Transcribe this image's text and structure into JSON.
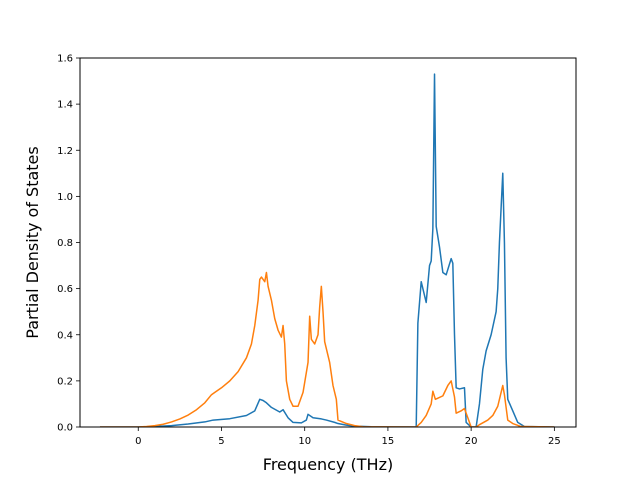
{
  "chart_data": {
    "type": "line",
    "title": "",
    "xlabel": "Frequency (THz)",
    "ylabel": "Partial Density of States",
    "xlim": [
      -3.5,
      26.3
    ],
    "ylim": [
      0,
      1.6
    ],
    "xticks": [
      0,
      5,
      10,
      15,
      20,
      25
    ],
    "yticks": [
      0.0,
      0.2,
      0.4,
      0.6,
      0.8,
      1.0,
      1.2,
      1.4,
      1.6
    ],
    "xtick_labels": [
      "0",
      "5",
      "10",
      "15",
      "20",
      "25"
    ],
    "ytick_labels": [
      "0.0",
      "0.2",
      "0.4",
      "0.6",
      "0.8",
      "1.0",
      "1.2",
      "1.4",
      "1.6"
    ],
    "grid": false,
    "legend": "none",
    "series": [
      {
        "color": "#1f77b4",
        "points": [
          [
            -2.3,
            0.0
          ],
          [
            0.0,
            0.0
          ],
          [
            1.0,
            0.002
          ],
          [
            2.0,
            0.006
          ],
          [
            3.0,
            0.013
          ],
          [
            4.0,
            0.022
          ],
          [
            4.5,
            0.03
          ],
          [
            5.5,
            0.036
          ],
          [
            6.5,
            0.05
          ],
          [
            7.0,
            0.07
          ],
          [
            7.3,
            0.12
          ],
          [
            7.5,
            0.115
          ],
          [
            7.7,
            0.105
          ],
          [
            8.0,
            0.085
          ],
          [
            8.5,
            0.065
          ],
          [
            8.7,
            0.075
          ],
          [
            9.0,
            0.04
          ],
          [
            9.3,
            0.02
          ],
          [
            9.8,
            0.018
          ],
          [
            10.1,
            0.03
          ],
          [
            10.2,
            0.055
          ],
          [
            10.5,
            0.04
          ],
          [
            11.0,
            0.035
          ],
          [
            11.3,
            0.03
          ],
          [
            11.8,
            0.02
          ],
          [
            12.0,
            0.015
          ],
          [
            12.5,
            0.008
          ],
          [
            13.0,
            0.004
          ],
          [
            14.0,
            0.001
          ],
          [
            16.7,
            0.0
          ],
          [
            16.8,
            0.45
          ],
          [
            17.0,
            0.63
          ],
          [
            17.3,
            0.54
          ],
          [
            17.5,
            0.7
          ],
          [
            17.6,
            0.72
          ],
          [
            17.7,
            0.86
          ],
          [
            17.8,
            1.53
          ],
          [
            17.9,
            0.87
          ],
          [
            18.1,
            0.78
          ],
          [
            18.3,
            0.67
          ],
          [
            18.5,
            0.66
          ],
          [
            18.8,
            0.73
          ],
          [
            18.9,
            0.71
          ],
          [
            19.0,
            0.4
          ],
          [
            19.1,
            0.17
          ],
          [
            19.3,
            0.165
          ],
          [
            19.6,
            0.17
          ],
          [
            19.7,
            0.02
          ],
          [
            20.0,
            0.0
          ],
          [
            20.3,
            0.0
          ],
          [
            20.5,
            0.1
          ],
          [
            20.7,
            0.25
          ],
          [
            20.9,
            0.33
          ],
          [
            21.2,
            0.4
          ],
          [
            21.5,
            0.5
          ],
          [
            21.6,
            0.6
          ],
          [
            21.7,
            0.8
          ],
          [
            21.8,
            0.95
          ],
          [
            21.9,
            1.1
          ],
          [
            22.0,
            0.8
          ],
          [
            22.1,
            0.3
          ],
          [
            22.2,
            0.12
          ],
          [
            22.5,
            0.07
          ],
          [
            22.8,
            0.02
          ],
          [
            23.2,
            0.002
          ],
          [
            25.0,
            0.0
          ]
        ]
      },
      {
        "color": "#ff7f0e",
        "points": [
          [
            -2.3,
            0.0
          ],
          [
            0.0,
            0.0
          ],
          [
            0.5,
            0.002
          ],
          [
            1.0,
            0.006
          ],
          [
            1.5,
            0.012
          ],
          [
            2.0,
            0.022
          ],
          [
            2.5,
            0.035
          ],
          [
            3.0,
            0.052
          ],
          [
            3.5,
            0.075
          ],
          [
            4.0,
            0.105
          ],
          [
            4.4,
            0.14
          ],
          [
            4.6,
            0.15
          ],
          [
            5.0,
            0.17
          ],
          [
            5.5,
            0.2
          ],
          [
            6.0,
            0.24
          ],
          [
            6.5,
            0.3
          ],
          [
            6.8,
            0.36
          ],
          [
            7.0,
            0.44
          ],
          [
            7.2,
            0.55
          ],
          [
            7.3,
            0.64
          ],
          [
            7.4,
            0.65
          ],
          [
            7.6,
            0.63
          ],
          [
            7.7,
            0.67
          ],
          [
            7.8,
            0.61
          ],
          [
            8.0,
            0.55
          ],
          [
            8.2,
            0.47
          ],
          [
            8.4,
            0.42
          ],
          [
            8.6,
            0.39
          ],
          [
            8.7,
            0.44
          ],
          [
            8.8,
            0.36
          ],
          [
            8.9,
            0.2
          ],
          [
            9.1,
            0.12
          ],
          [
            9.3,
            0.09
          ],
          [
            9.6,
            0.09
          ],
          [
            9.9,
            0.15
          ],
          [
            10.2,
            0.28
          ],
          [
            10.3,
            0.48
          ],
          [
            10.4,
            0.38
          ],
          [
            10.6,
            0.36
          ],
          [
            10.8,
            0.4
          ],
          [
            10.9,
            0.52
          ],
          [
            11.0,
            0.61
          ],
          [
            11.1,
            0.5
          ],
          [
            11.2,
            0.37
          ],
          [
            11.5,
            0.28
          ],
          [
            11.7,
            0.18
          ],
          [
            11.9,
            0.12
          ],
          [
            12.0,
            0.03
          ],
          [
            12.5,
            0.015
          ],
          [
            13.0,
            0.006
          ],
          [
            13.5,
            0.001
          ],
          [
            16.7,
            0.0
          ],
          [
            17.0,
            0.02
          ],
          [
            17.3,
            0.05
          ],
          [
            17.6,
            0.1
          ],
          [
            17.7,
            0.155
          ],
          [
            17.85,
            0.12
          ],
          [
            18.0,
            0.125
          ],
          [
            18.3,
            0.135
          ],
          [
            18.6,
            0.18
          ],
          [
            18.8,
            0.2
          ],
          [
            19.0,
            0.13
          ],
          [
            19.1,
            0.06
          ],
          [
            19.4,
            0.07
          ],
          [
            19.6,
            0.08
          ],
          [
            19.8,
            0.04
          ],
          [
            20.0,
            0.0
          ],
          [
            20.3,
            0.0
          ],
          [
            20.5,
            0.01
          ],
          [
            21.0,
            0.03
          ],
          [
            21.3,
            0.05
          ],
          [
            21.6,
            0.09
          ],
          [
            21.8,
            0.15
          ],
          [
            21.9,
            0.18
          ],
          [
            22.0,
            0.14
          ],
          [
            22.2,
            0.03
          ],
          [
            22.5,
            0.015
          ],
          [
            23.0,
            0.002
          ],
          [
            25.0,
            0.0
          ]
        ]
      }
    ]
  }
}
